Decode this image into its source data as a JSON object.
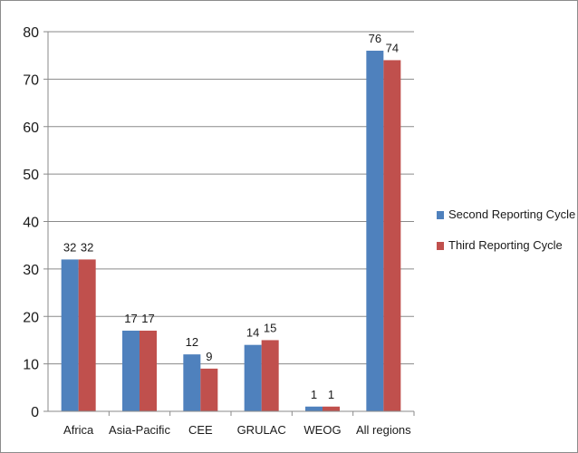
{
  "chart_data": {
    "type": "bar",
    "categories": [
      "Africa",
      "Asia-Pacific",
      "CEE",
      "GRULAC",
      "WEOG",
      "All regions"
    ],
    "series": [
      {
        "name": "Second Reporting Cycle",
        "values": [
          32,
          17,
          12,
          14,
          1,
          76
        ],
        "color": "#4f81bd"
      },
      {
        "name": "Third Reporting Cycle",
        "values": [
          32,
          17,
          9,
          15,
          1,
          74
        ],
        "color": "#c0504d"
      }
    ],
    "title": "",
    "xlabel": "",
    "ylabel": "",
    "ylim": [
      0,
      80
    ],
    "yticks": [
      0,
      10,
      20,
      30,
      40,
      50,
      60,
      70,
      80
    ],
    "grid": true,
    "legend": "right"
  }
}
